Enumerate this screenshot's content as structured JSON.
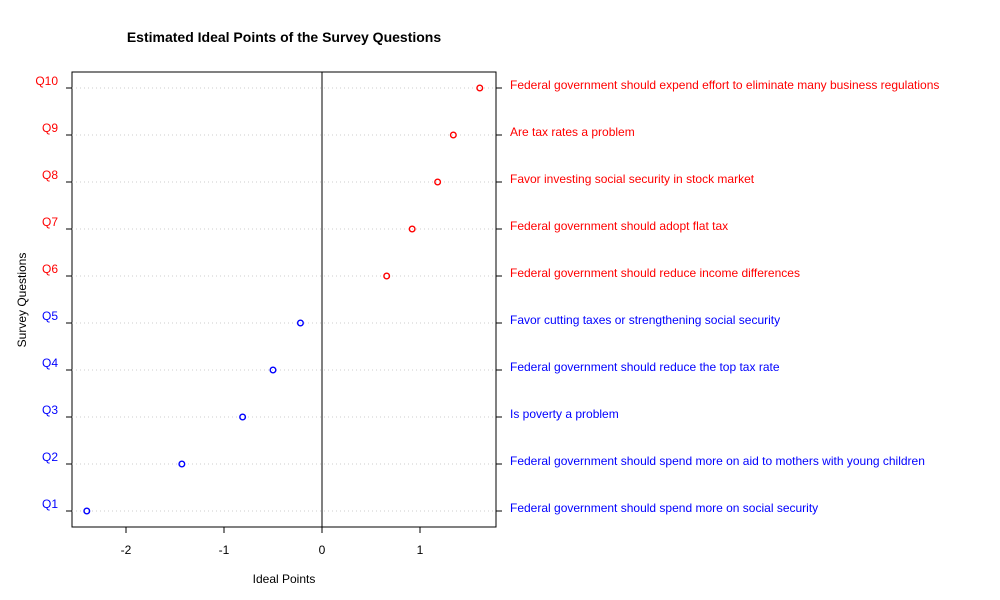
{
  "chart_data": {
    "type": "scatter",
    "title": "Estimated Ideal Points of the Survey Questions",
    "xlabel": "Ideal Points",
    "ylabel": "Survey Questions",
    "xlim": [
      -2.5,
      1.75
    ],
    "x_ticks": [
      -2,
      -1,
      0,
      1
    ],
    "x_tick_labels": [
      "-2",
      "-1",
      "0",
      "1"
    ],
    "reference_line_x": 0,
    "grid": "dotted horizontal guides",
    "colors": {
      "negative": "#0000ff",
      "positive": "#ff0000",
      "axis": "#000000",
      "guide": "#cccccc"
    },
    "points": [
      {
        "q": "Q1",
        "x": -2.4,
        "color": "#0000ff",
        "text": "Federal government should spend more on social security"
      },
      {
        "q": "Q2",
        "x": -1.43,
        "color": "#0000ff",
        "text": "Federal government should spend more on aid to mothers with young children"
      },
      {
        "q": "Q3",
        "x": -0.81,
        "color": "#0000ff",
        "text": "Is poverty a problem"
      },
      {
        "q": "Q4",
        "x": -0.5,
        "color": "#0000ff",
        "text": "Federal government should reduce the top tax rate"
      },
      {
        "q": "Q5",
        "x": -0.22,
        "color": "#0000ff",
        "text": "Favor cutting taxes or strengthening social security"
      },
      {
        "q": "Q6",
        "x": 0.66,
        "color": "#ff0000",
        "text": "Federal government should reduce income differences"
      },
      {
        "q": "Q7",
        "x": 0.92,
        "color": "#ff0000",
        "text": "Federal government should adopt flat tax"
      },
      {
        "q": "Q8",
        "x": 1.18,
        "color": "#ff0000",
        "text": "Favor investing social security in stock market"
      },
      {
        "q": "Q9",
        "x": 1.34,
        "color": "#ff0000",
        "text": "Are tax rates a problem"
      },
      {
        "q": "Q10",
        "x": 1.61,
        "color": "#ff0000",
        "text": "Federal government should expend effort to eliminate many business regulations"
      }
    ]
  }
}
